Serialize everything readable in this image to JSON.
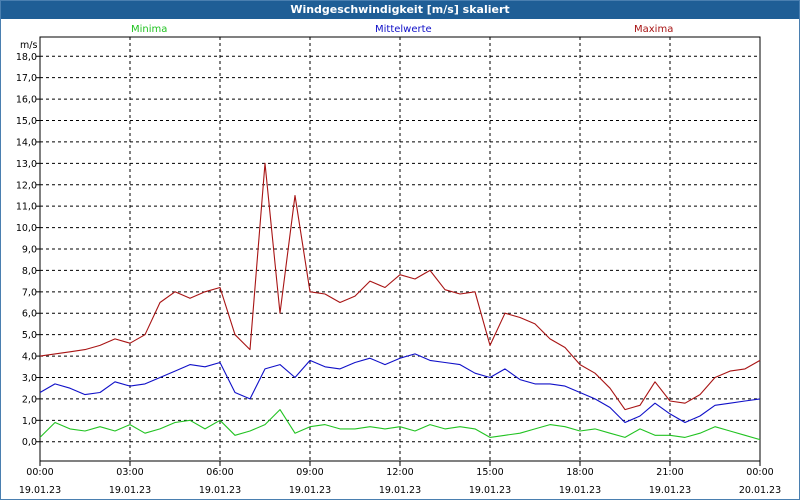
{
  "window": {
    "title": "Windgeschwindigkeit [m/s] skaliert"
  },
  "chart_data": {
    "type": "line",
    "title": "Windgeschwindigkeit [m/s] skaliert",
    "ylabel": "m/s",
    "ylim": [
      -0.9,
      18.9
    ],
    "yticks": [
      "0,0",
      "1,0",
      "2,0",
      "3,0",
      "4,0",
      "5,0",
      "6,0",
      "7,0",
      "8,0",
      "9,0",
      "10,0",
      "11,0",
      "12,0",
      "13,0",
      "14,0",
      "15,0",
      "16,0",
      "17,0",
      "18,0"
    ],
    "xticks": [
      {
        "time": "00:00",
        "date": "19.01.23"
      },
      {
        "time": "03:00",
        "date": "19.01.23"
      },
      {
        "time": "06:00",
        "date": "19.01.23"
      },
      {
        "time": "09:00",
        "date": "19.01.23"
      },
      {
        "time": "12:00",
        "date": "19.01.23"
      },
      {
        "time": "15:00",
        "date": "19.01.23"
      },
      {
        "time": "18:00",
        "date": "19.01.23"
      },
      {
        "time": "21:00",
        "date": "19.01.23"
      },
      {
        "time": "00:00",
        "date": "20.01.23"
      }
    ],
    "x_hours": [
      0,
      0.5,
      1,
      1.5,
      2,
      2.5,
      3,
      3.5,
      4,
      4.5,
      5,
      5.5,
      6,
      6.5,
      7,
      7.5,
      8,
      8.5,
      9,
      9.5,
      10,
      10.5,
      11,
      11.5,
      12,
      12.5,
      13,
      13.5,
      14,
      14.5,
      15,
      15.5,
      16,
      16.5,
      17,
      17.5,
      18,
      18.5,
      19,
      19.5,
      20,
      20.5,
      21,
      21.5,
      22,
      22.5,
      23,
      23.5,
      24
    ],
    "grid": true,
    "series": [
      {
        "name": "Minima",
        "color": "#22c322",
        "values": [
          0.2,
          0.9,
          0.6,
          0.5,
          0.7,
          0.5,
          0.8,
          0.4,
          0.6,
          0.9,
          1.0,
          0.6,
          1.0,
          0.3,
          0.5,
          0.8,
          1.5,
          0.4,
          0.7,
          0.8,
          0.6,
          0.6,
          0.7,
          0.6,
          0.7,
          0.5,
          0.8,
          0.6,
          0.7,
          0.6,
          0.2,
          0.3,
          0.4,
          0.6,
          0.8,
          0.7,
          0.5,
          0.6,
          0.4,
          0.2,
          0.6,
          0.3,
          0.3,
          0.2,
          0.4,
          0.7,
          0.5,
          0.3,
          0.1
        ]
      },
      {
        "name": "Mittelwerte",
        "color": "#1010c8",
        "values": [
          2.3,
          2.7,
          2.5,
          2.2,
          2.3,
          2.8,
          2.6,
          2.7,
          3.0,
          3.3,
          3.6,
          3.5,
          3.7,
          2.3,
          2.0,
          3.4,
          3.6,
          3.0,
          3.8,
          3.5,
          3.4,
          3.7,
          3.9,
          3.6,
          3.9,
          4.1,
          3.8,
          3.7,
          3.6,
          3.2,
          3.0,
          3.4,
          2.9,
          2.7,
          2.7,
          2.6,
          2.3,
          2.0,
          1.6,
          0.9,
          1.2,
          1.8,
          1.3,
          0.9,
          1.2,
          1.7,
          1.8,
          1.9,
          2.0
        ]
      },
      {
        "name": "Maxima",
        "color": "#a81414",
        "values": [
          4.0,
          4.1,
          4.2,
          4.3,
          4.5,
          4.8,
          4.6,
          5.0,
          6.5,
          7.0,
          6.7,
          7.0,
          7.2,
          5.0,
          4.3,
          13.0,
          6.0,
          11.5,
          7.0,
          6.9,
          6.5,
          6.8,
          7.5,
          7.2,
          7.8,
          7.6,
          8.0,
          7.1,
          6.9,
          7.0,
          4.5,
          6.0,
          5.8,
          5.5,
          4.8,
          4.4,
          3.6,
          3.2,
          2.5,
          1.5,
          1.7,
          2.8,
          1.9,
          1.8,
          2.2,
          3.0,
          3.3,
          3.4,
          3.8
        ]
      }
    ]
  }
}
